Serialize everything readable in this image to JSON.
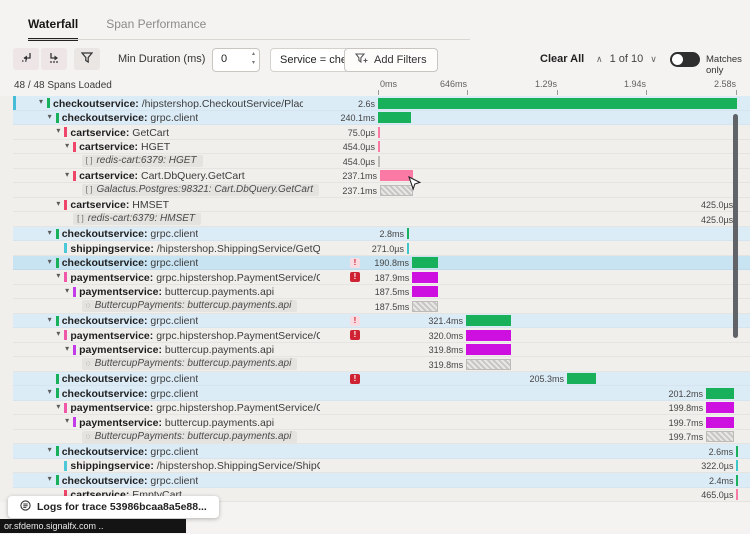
{
  "tabs": {
    "waterfall": "Waterfall",
    "span_performance": "Span Performance"
  },
  "toolbar": {
    "min_duration_label": "Min Duration (ms)",
    "min_duration_value": "0",
    "filter_chip_text": "Service = checkoutservice",
    "filter_chip_close": "×",
    "add_filters_label": "Add Filters",
    "clear_all_label": "Clear All",
    "match_position": "1 of 10",
    "prev_arrow": "∧",
    "next_arrow": "∨",
    "matches_only_label": "Matches only"
  },
  "status": {
    "spans_loaded": "48 / 48 Spans Loaded"
  },
  "timeline": {
    "ticks": [
      "0ms",
      "646ms",
      "1.29s",
      "1.94s",
      "2.58s"
    ],
    "total_ms": 2580
  },
  "icons": {
    "db_chip": "[ ]",
    "service_chip": "◌",
    "chevron": "▾"
  },
  "colors": {
    "green": "#18b05a",
    "magenta": "#cd0fe0",
    "pink": "#fb7aa5",
    "teal": "#3fc6c9",
    "services": {
      "checkout": "#18b05a",
      "cart": "#ee4569",
      "shipping": "#4cc8d8",
      "charge": "#ef57a8",
      "payapi": "#c33ae8"
    },
    "match_row": "#dcecf7",
    "selected_row": "#c8e3f2"
  },
  "rows": [
    {
      "svc": "checkoutservice",
      "op": "/hipstershop.CheckoutService/PlaceOrder",
      "dur": "2.6s",
      "level": 0,
      "chev": true,
      "hl": "match",
      "accent": true,
      "start": 0,
      "ms": 2580,
      "color": "green",
      "svcColor": "checkout"
    },
    {
      "svc": "checkoutservice",
      "op": "grpc.client",
      "dur": "240.1ms",
      "level": 1,
      "chev": true,
      "hl": "match",
      "start": 0,
      "ms": 240.1,
      "color": "green",
      "svcColor": "checkout"
    },
    {
      "svc": "cartservice",
      "op": "GetCart",
      "dur": "75.0µs",
      "level": 2,
      "chev": true,
      "start": 0,
      "ms": 0.075,
      "color": "pink",
      "svcColor": "cart"
    },
    {
      "svc": "cartservice",
      "op": "HGET",
      "dur": "454.0µs",
      "level": 3,
      "chev": true,
      "start": 0,
      "ms": 0.454,
      "color": "pink",
      "svcColor": "cart"
    },
    {
      "chip": "db",
      "svc": "redis-cart:6379",
      "op": "HGET",
      "dur": "454.0µs",
      "level": 4,
      "start": 0,
      "ms": 0.454,
      "color": "hatch"
    },
    {
      "svc": "cartservice",
      "op": "Cart.DbQuery.GetCart",
      "dur": "237.1ms",
      "level": 3,
      "chev": true,
      "start": 14,
      "ms": 237.1,
      "color": "pink",
      "svcColor": "cart"
    },
    {
      "chip": "db",
      "svc": "Galactus.Postgres:98321",
      "op": "Cart.DbQuery.GetCart",
      "dur": "237.1ms",
      "level": 4,
      "start": 14,
      "ms": 237.1,
      "color": "hatch"
    },
    {
      "svc": "cartservice",
      "op": "HMSET",
      "dur": "425.0µs",
      "level": 2,
      "chev": true,
      "start": 2574,
      "ms": 0.425,
      "color": "pink",
      "svcColor": "cart"
    },
    {
      "chip": "db",
      "svc": "redis-cart:6379",
      "op": "HMSET",
      "dur": "425.0µs",
      "level": 3,
      "start": 2574,
      "ms": 0.425,
      "color": "hatch"
    },
    {
      "svc": "checkoutservice",
      "op": "grpc.client",
      "dur": "2.8ms",
      "level": 1,
      "chev": true,
      "hl": "match",
      "start": 208,
      "ms": 2.8,
      "color": "green",
      "svcColor": "checkout"
    },
    {
      "svc": "shippingservice",
      "op": "/hipstershop.ShippingService/GetQuote",
      "dur": "271.0µs",
      "level": 2,
      "start": 208,
      "ms": 0.271,
      "color": "teal",
      "svcColor": "shipping"
    },
    {
      "svc": "checkoutservice",
      "op": "grpc.client",
      "dur": "190.8ms",
      "level": 1,
      "chev": true,
      "badge": "light",
      "hl": "selected",
      "start": 244,
      "ms": 190.8,
      "color": "green",
      "svcColor": "checkout"
    },
    {
      "svc": "paymentservice",
      "op": "grpc.hipstershop.PaymentService/Charge",
      "dur": "187.9ms",
      "level": 2,
      "chev": true,
      "badge": "solid",
      "start": 246,
      "ms": 187.9,
      "color": "magenta",
      "svcColor": "charge"
    },
    {
      "svc": "paymentservice",
      "op": "buttercup.payments.api",
      "dur": "187.5ms",
      "level": 3,
      "chev": true,
      "start": 246,
      "ms": 187.5,
      "color": "magenta",
      "svcColor": "payapi"
    },
    {
      "chip": "service",
      "svc": "ButtercupPayments",
      "op": "buttercup.payments.api",
      "dur": "187.5ms",
      "level": 4,
      "start": 246,
      "ms": 187.5,
      "color": "hatch"
    },
    {
      "svc": "checkoutservice",
      "op": "grpc.client",
      "dur": "321.4ms",
      "level": 1,
      "chev": true,
      "badge": "light",
      "hl": "match",
      "start": 632,
      "ms": 321.4,
      "color": "green",
      "svcColor": "checkout"
    },
    {
      "svc": "paymentservice",
      "op": "grpc.hipstershop.PaymentService/Charge",
      "dur": "320.0ms",
      "level": 2,
      "chev": true,
      "badge": "solid",
      "start": 633,
      "ms": 320,
      "color": "magenta",
      "svcColor": "charge"
    },
    {
      "svc": "paymentservice",
      "op": "buttercup.payments.api",
      "dur": "319.8ms",
      "level": 3,
      "chev": true,
      "start": 633,
      "ms": 319.8,
      "color": "magenta",
      "svcColor": "payapi"
    },
    {
      "chip": "service",
      "svc": "ButtercupPayments",
      "op": "buttercup.payments.api",
      "dur": "319.8ms",
      "level": 4,
      "start": 633,
      "ms": 319.8,
      "color": "hatch"
    },
    {
      "svc": "checkoutservice",
      "op": "grpc.client",
      "dur": "205.3ms",
      "level": 1,
      "badge": "solid",
      "hl": "match",
      "start": 1358,
      "ms": 205.3,
      "color": "green",
      "svcColor": "checkout"
    },
    {
      "svc": "checkoutservice",
      "op": "grpc.client",
      "dur": "201.2ms",
      "level": 1,
      "chev": true,
      "hl": "match",
      "start": 2357,
      "ms": 201.2,
      "color": "green",
      "svcColor": "checkout"
    },
    {
      "svc": "paymentservice",
      "op": "grpc.hipstershop.PaymentService/Charge",
      "dur": "199.8ms",
      "level": 2,
      "chev": true,
      "start": 2358,
      "ms": 199.8,
      "color": "magenta",
      "svcColor": "charge"
    },
    {
      "svc": "paymentservice",
      "op": "buttercup.payments.api",
      "dur": "199.7ms",
      "level": 3,
      "chev": true,
      "start": 2358,
      "ms": 199.7,
      "color": "magenta",
      "svcColor": "payapi"
    },
    {
      "chip": "service",
      "svc": "ButtercupPayments",
      "op": "buttercup.payments.api",
      "dur": "199.7ms",
      "level": 4,
      "start": 2358,
      "ms": 199.7,
      "color": "hatch"
    },
    {
      "svc": "checkoutservice",
      "op": "grpc.client",
      "dur": "2.6ms",
      "level": 1,
      "chev": true,
      "hl": "match",
      "start": 2574,
      "ms": 2.6,
      "color": "green",
      "svcColor": "checkout"
    },
    {
      "svc": "shippingservice",
      "op": "/hipstershop.ShippingService/ShipOrder",
      "dur": "322.0µs",
      "level": 2,
      "start": 2576,
      "ms": 0.322,
      "color": "teal",
      "svcColor": "shipping"
    },
    {
      "svc": "checkoutservice",
      "op": "grpc.client",
      "dur": "2.4ms",
      "level": 1,
      "chev": true,
      "hl": "match",
      "start": 2576,
      "ms": 2.4,
      "color": "green",
      "svcColor": "checkout"
    },
    {
      "svc": "cartservice",
      "op": "EmptyCart",
      "dur": "465.0µs",
      "level": 2,
      "start": 2576,
      "ms": 0.465,
      "color": "pink",
      "svcColor": "cart"
    }
  ],
  "footer": {
    "logs_button": "Logs for trace 53986bcaa8a5e88...",
    "status_url": "or.sfdemo.signalfx.com .."
  }
}
